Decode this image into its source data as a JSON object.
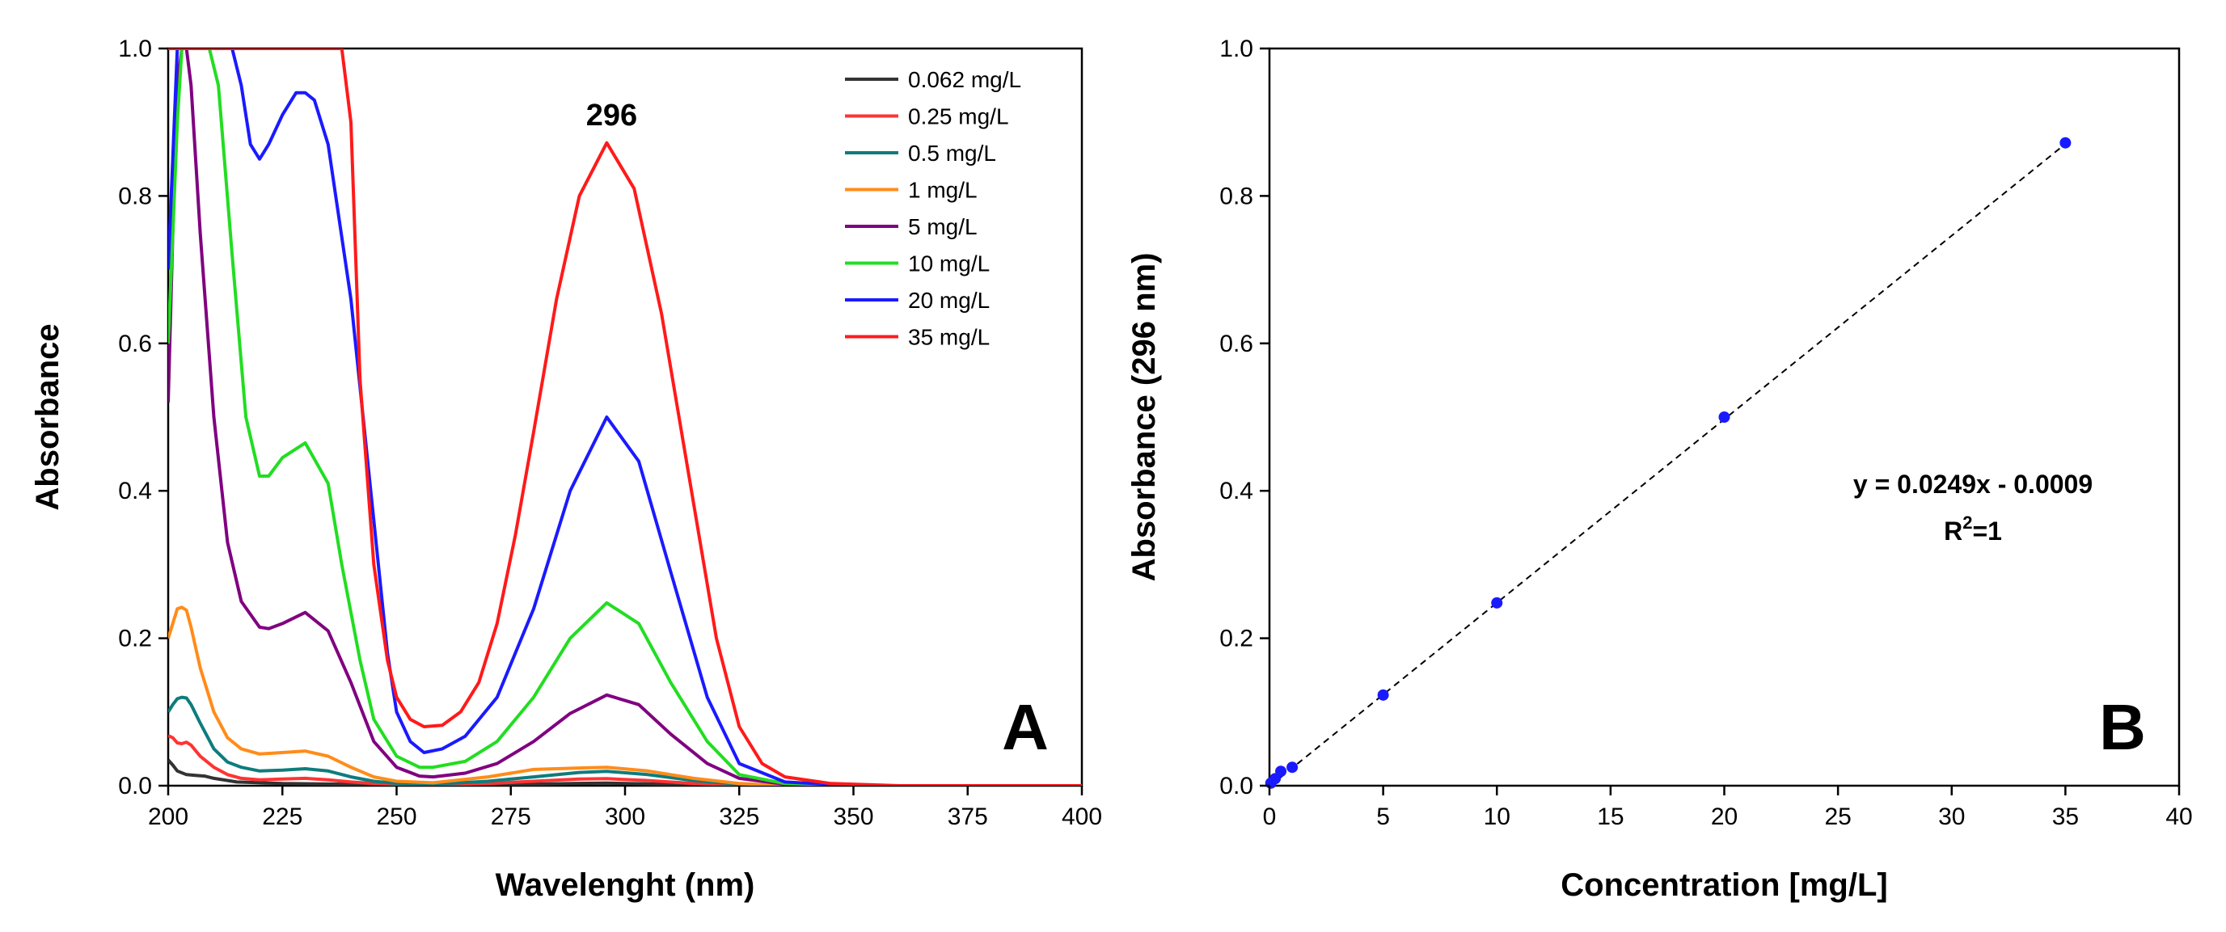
{
  "chart_data": [
    {
      "type": "line",
      "panel_label": "A",
      "xlabel": "Wavelenght (nm)",
      "ylabel": "Absorbance",
      "xlim": [
        200,
        400
      ],
      "ylim": [
        0,
        1.0
      ],
      "xticks": [
        200,
        225,
        250,
        275,
        300,
        325,
        350,
        375,
        400
      ],
      "yticks": [
        0.0,
        0.2,
        0.4,
        0.6,
        0.8,
        1.0
      ],
      "ytick_labels": [
        "0.0",
        "0.2",
        "0.4",
        "0.6",
        "0.8",
        "1.0"
      ],
      "annotation": {
        "text": "296",
        "x": 296,
        "y": 0.9
      },
      "legend_position": "top-right",
      "series": [
        {
          "name": "0.062 mg/L",
          "color": "#333333",
          "x": [
            200,
            201,
            202,
            204,
            206,
            208,
            210,
            215,
            225,
            240,
            250,
            260,
            275,
            290,
            296,
            305,
            320,
            340,
            400
          ],
          "y": [
            0.035,
            0.028,
            0.02,
            0.015,
            0.014,
            0.013,
            0.01,
            0.005,
            0.003,
            0.002,
            0.001,
            0.0005,
            0.0015,
            0.0032,
            0.0035,
            0.0025,
            0.0007,
            0,
            0
          ]
        },
        {
          "name": "0.25 mg/L",
          "color": "#ff3333",
          "x": [
            200,
            201,
            202,
            203,
            204,
            205,
            207,
            210,
            213,
            216,
            220,
            225,
            230,
            235,
            240,
            245,
            250,
            258,
            270,
            280,
            290,
            296,
            305,
            315,
            325,
            335,
            400
          ],
          "y": [
            0.068,
            0.065,
            0.058,
            0.057,
            0.059,
            0.055,
            0.04,
            0.025,
            0.015,
            0.01,
            0.008,
            0.009,
            0.01,
            0.008,
            0.005,
            0.003,
            0.002,
            0.001,
            0.003,
            0.006,
            0.009,
            0.0095,
            0.007,
            0.003,
            0.0008,
            0,
            0
          ]
        },
        {
          "name": "0.5 mg/L",
          "color": "#0e7c7c",
          "x": [
            200,
            201,
            202,
            203,
            204,
            205,
            207,
            210,
            213,
            216,
            220,
            225,
            230,
            235,
            240,
            245,
            250,
            258,
            270,
            280,
            290,
            296,
            305,
            315,
            325,
            335,
            400
          ],
          "y": [
            0.1,
            0.11,
            0.118,
            0.12,
            0.119,
            0.11,
            0.085,
            0.05,
            0.032,
            0.025,
            0.02,
            0.021,
            0.023,
            0.02,
            0.012,
            0.006,
            0.003,
            0.002,
            0.006,
            0.012,
            0.018,
            0.0195,
            0.015,
            0.007,
            0.002,
            0,
            0
          ]
        },
        {
          "name": "1 mg/L",
          "color": "#ff8c1a",
          "x": [
            200,
            201,
            202,
            203,
            204,
            205,
            207,
            210,
            213,
            216,
            220,
            225,
            230,
            235,
            240,
            245,
            250,
            258,
            270,
            280,
            290,
            296,
            305,
            315,
            325,
            335,
            400
          ],
          "y": [
            0.2,
            0.22,
            0.24,
            0.242,
            0.238,
            0.215,
            0.16,
            0.1,
            0.065,
            0.05,
            0.043,
            0.045,
            0.047,
            0.04,
            0.025,
            0.012,
            0.006,
            0.004,
            0.012,
            0.022,
            0.024,
            0.025,
            0.02,
            0.01,
            0.003,
            0,
            0
          ]
        },
        {
          "name": "5 mg/L",
          "color": "#800080",
          "x": [
            200,
            201,
            202,
            203,
            204,
            205,
            207,
            210,
            213,
            216,
            220,
            222,
            225,
            230,
            235,
            240,
            245,
            250,
            255,
            258,
            265,
            272,
            280,
            288,
            296,
            303,
            310,
            318,
            325,
            335,
            350,
            400
          ],
          "y": [
            0.52,
            0.75,
            0.95,
            1.0,
            1.0,
            0.95,
            0.75,
            0.5,
            0.33,
            0.25,
            0.215,
            0.213,
            0.22,
            0.235,
            0.21,
            0.14,
            0.06,
            0.025,
            0.013,
            0.012,
            0.017,
            0.03,
            0.06,
            0.098,
            0.123,
            0.11,
            0.07,
            0.03,
            0.01,
            0.002,
            0,
            0
          ]
        },
        {
          "name": "10 mg/L",
          "color": "#22dd22",
          "x": [
            200,
            201,
            202,
            203,
            204,
            205,
            207,
            209,
            211,
            214,
            217,
            220,
            222,
            225,
            230,
            235,
            238,
            242,
            245,
            250,
            255,
            258,
            265,
            272,
            280,
            288,
            296,
            303,
            310,
            318,
            325,
            335,
            350,
            400
          ],
          "y": [
            0.6,
            0.75,
            0.9,
            1.0,
            1.0,
            1.0,
            1.0,
            1.0,
            0.95,
            0.72,
            0.5,
            0.42,
            0.42,
            0.445,
            0.465,
            0.41,
            0.3,
            0.17,
            0.09,
            0.04,
            0.025,
            0.025,
            0.033,
            0.06,
            0.12,
            0.2,
            0.248,
            0.22,
            0.14,
            0.06,
            0.015,
            0.003,
            0,
            0
          ]
        },
        {
          "name": "20 mg/L",
          "color": "#1a1aff",
          "x": [
            200,
            202,
            205,
            210,
            214,
            216,
            218,
            220,
            222,
            225,
            228,
            230,
            232,
            235,
            240,
            245,
            248,
            250,
            253,
            256,
            260,
            265,
            272,
            280,
            288,
            296,
            303,
            310,
            318,
            325,
            335,
            350,
            400
          ],
          "y": [
            0.7,
            1.0,
            1.0,
            1.0,
            1.0,
            0.95,
            0.87,
            0.85,
            0.87,
            0.91,
            0.94,
            0.94,
            0.93,
            0.87,
            0.66,
            0.36,
            0.18,
            0.1,
            0.06,
            0.045,
            0.05,
            0.067,
            0.12,
            0.24,
            0.4,
            0.5,
            0.44,
            0.29,
            0.12,
            0.03,
            0.005,
            0,
            0
          ]
        },
        {
          "name": "35 mg/L",
          "color": "#ff1a1a",
          "x": [
            200,
            202,
            205,
            210,
            220,
            235,
            238,
            240,
            242,
            245,
            248,
            250,
            253,
            256,
            260,
            264,
            268,
            272,
            276,
            280,
            285,
            290,
            296,
            302,
            308,
            314,
            320,
            325,
            330,
            335,
            345,
            360,
            400
          ],
          "y": [
            1.0,
            1.0,
            1.0,
            1.0,
            1.0,
            1.0,
            1.0,
            0.9,
            0.55,
            0.3,
            0.17,
            0.12,
            0.09,
            0.08,
            0.082,
            0.1,
            0.14,
            0.22,
            0.34,
            0.48,
            0.66,
            0.8,
            0.872,
            0.81,
            0.64,
            0.42,
            0.2,
            0.08,
            0.03,
            0.012,
            0.003,
            0,
            0
          ]
        }
      ]
    },
    {
      "type": "scatter",
      "panel_label": "B",
      "xlabel": "Concentration [mg/L]",
      "ylabel": "Absorbance (296 nm)",
      "xlim": [
        0,
        40
      ],
      "ylim": [
        0,
        1.0
      ],
      "xticks": [
        0,
        5,
        10,
        15,
        20,
        25,
        30,
        35,
        40
      ],
      "yticks": [
        0.0,
        0.2,
        0.4,
        0.6,
        0.8,
        1.0
      ],
      "ytick_labels": [
        "0.0",
        "0.2",
        "0.4",
        "0.6",
        "0.8",
        "1.0"
      ],
      "series": [
        {
          "name": "Absorbance (296 nm)",
          "color": "#1a1aff",
          "x": [
            0.062,
            0.25,
            0.5,
            1,
            5,
            10,
            20,
            35
          ],
          "y": [
            0.0035,
            0.0095,
            0.0195,
            0.025,
            0.123,
            0.248,
            0.5,
            0.872
          ]
        }
      ],
      "fit": {
        "slope": 0.0249,
        "intercept": -0.0009,
        "color": "#000000",
        "style": "dashed"
      },
      "equation_text": "y = 0.0249x - 0.0009",
      "r2_prefix": "R",
      "r2_sup": "2",
      "r2_suffix": "=1"
    }
  ]
}
